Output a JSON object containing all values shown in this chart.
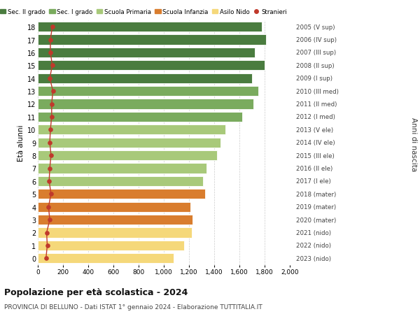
{
  "ages": [
    18,
    17,
    16,
    15,
    14,
    13,
    12,
    11,
    10,
    9,
    8,
    7,
    6,
    5,
    4,
    3,
    2,
    1,
    0
  ],
  "anni_nascita": [
    "2005 (V sup)",
    "2006 (IV sup)",
    "2007 (III sup)",
    "2008 (II sup)",
    "2009 (I sup)",
    "2010 (III med)",
    "2011 (II med)",
    "2012 (I med)",
    "2013 (V ele)",
    "2014 (IV ele)",
    "2015 (III ele)",
    "2016 (II ele)",
    "2017 (I ele)",
    "2018 (mater)",
    "2019 (mater)",
    "2020 (mater)",
    "2021 (nido)",
    "2022 (nido)",
    "2023 (nido)"
  ],
  "bar_values": [
    1780,
    1810,
    1720,
    1800,
    1700,
    1750,
    1710,
    1620,
    1490,
    1450,
    1420,
    1340,
    1310,
    1330,
    1210,
    1230,
    1220,
    1160,
    1080
  ],
  "stranieri_values": [
    115,
    100,
    100,
    115,
    95,
    120,
    110,
    110,
    100,
    95,
    105,
    95,
    90,
    105,
    85,
    95,
    70,
    75,
    65
  ],
  "bar_colors": [
    "#4a7c3f",
    "#4a7c3f",
    "#4a7c3f",
    "#4a7c3f",
    "#4a7c3f",
    "#7aab5e",
    "#7aab5e",
    "#7aab5e",
    "#a8c97a",
    "#a8c97a",
    "#a8c97a",
    "#a8c97a",
    "#a8c97a",
    "#d97d2e",
    "#d97d2e",
    "#d97d2e",
    "#f5d87a",
    "#f5d87a",
    "#f5d87a"
  ],
  "legend_labels": [
    "Sec. II grado",
    "Sec. I grado",
    "Scuola Primaria",
    "Scuola Infanzia",
    "Asilo Nido",
    "Stranieri"
  ],
  "legend_colors": [
    "#4a7c3f",
    "#7aab5e",
    "#a8c97a",
    "#d97d2e",
    "#f5d87a",
    "#c0392b"
  ],
  "ylabel_left": "Età alunni",
  "ylabel_right": "Anni di nascita",
  "title": "Popolazione per età scolastica - 2024",
  "subtitle": "PROVINCIA DI BELLUNO - Dati ISTAT 1° gennaio 2024 - Elaborazione TUTTITALIA.IT",
  "xlim": [
    0,
    2000
  ],
  "xticks": [
    0,
    200,
    400,
    600,
    800,
    1000,
    1200,
    1400,
    1600,
    1800,
    2000
  ],
  "xtick_labels": [
    "0",
    "200",
    "400",
    "600",
    "800",
    "1,000",
    "1,200",
    "1,400",
    "1,600",
    "1,800",
    "2,000"
  ],
  "stranieri_color": "#c0392b",
  "bar_height": 0.78,
  "background_color": "#ffffff",
  "grid_color": "#cccccc"
}
